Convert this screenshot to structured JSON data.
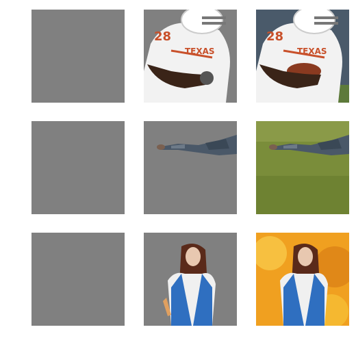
{
  "grid": {
    "columns": [
      "blank",
      "matte",
      "composite"
    ],
    "rows": [
      {
        "subject": "football-player",
        "background": "stadium"
      },
      {
        "subject": "soldier-crawling",
        "background": "grass-field"
      },
      {
        "subject": "woman-red-hair",
        "background": "autumn-foliage"
      }
    ]
  },
  "jersey_number": "28",
  "jersey_text": "TEXAS",
  "colors": {
    "neutral_gray": "#808080",
    "jersey_orange": "#c8502a",
    "grass_green": "#7a8d3a",
    "autumn_yellow": "#f0a020",
    "denim_blue": "#2f6fc0"
  }
}
